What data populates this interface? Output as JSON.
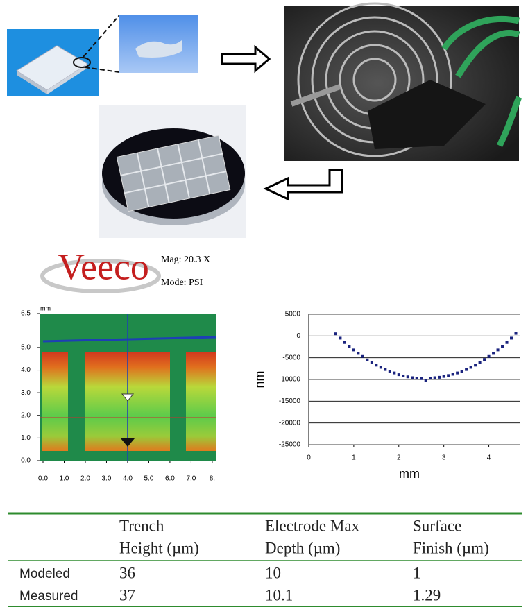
{
  "logo": {
    "brand": "Veeco",
    "mag": "Mag: 20.3 X",
    "mode": "Mode: PSI"
  },
  "chart_data": [
    {
      "type": "surface",
      "unit_label": "mm",
      "xlim": [
        0,
        8.2
      ],
      "ylim": [
        0,
        6.5
      ],
      "xticks": [
        {
          "value": 0,
          "label": "0.0"
        },
        {
          "value": 1,
          "label": "1.0"
        },
        {
          "value": 2,
          "label": "2.0"
        },
        {
          "value": 3,
          "label": "3.0"
        },
        {
          "value": 4,
          "label": "4.0"
        },
        {
          "value": 5,
          "label": "5.0"
        },
        {
          "value": 6,
          "label": "6.0"
        },
        {
          "value": 7,
          "label": "7.0"
        },
        {
          "value": 8,
          "label": "8."
        }
      ],
      "yticks": [
        {
          "value": 0,
          "label": "0.0"
        },
        {
          "value": 1,
          "label": "1.0"
        },
        {
          "value": 2,
          "label": "2.0"
        },
        {
          "value": 3,
          "label": "3.0"
        },
        {
          "value": 4,
          "label": "4.0"
        },
        {
          "value": 5,
          "label": "5.0"
        },
        6.5
      ]
    },
    {
      "type": "scatter",
      "xlabel": "mm",
      "ylabel": "nm",
      "color": "#1a237e",
      "grid": true,
      "xlim": [
        0,
        4.7
      ],
      "ylim": [
        -25000,
        5000
      ],
      "xticks": [
        0,
        1,
        2,
        3,
        4
      ],
      "yticks": [
        5000,
        0,
        -5000,
        -10000,
        -15000,
        -20000,
        -25000
      ],
      "x": [
        0.6,
        0.7,
        0.8,
        0.9,
        1.0,
        1.1,
        1.2,
        1.3,
        1.4,
        1.5,
        1.6,
        1.7,
        1.8,
        1.9,
        2.0,
        2.1,
        2.2,
        2.3,
        2.4,
        2.5,
        2.6,
        2.7,
        2.8,
        2.9,
        3.0,
        3.1,
        3.2,
        3.3,
        3.4,
        3.5,
        3.6,
        3.7,
        3.8,
        3.9,
        4.0,
        4.1,
        4.2,
        4.3,
        4.4,
        4.5,
        4.6
      ],
      "values": [
        500,
        -500,
        -1500,
        -2400,
        -3200,
        -4000,
        -4700,
        -5500,
        -6100,
        -6700,
        -7200,
        -7700,
        -8200,
        -8500,
        -8900,
        -9200,
        -9400,
        -9600,
        -9700,
        -9800,
        -10200,
        -9700,
        -9600,
        -9500,
        -9300,
        -9100,
        -8800,
        -8500,
        -8100,
        -7700,
        -7200,
        -6700,
        -6100,
        -5400,
        -4700,
        -4000,
        -3200,
        -2400,
        -1500,
        -500,
        600
      ]
    }
  ],
  "table": {
    "header": [
      [
        "Trench",
        "Height (µm)"
      ],
      [
        "Electrode Max",
        "Depth (µm)"
      ],
      [
        "Surface",
        "Finish (µm)"
      ]
    ],
    "rows": [
      [
        "Modeled",
        "36",
        "10",
        "1"
      ],
      [
        "Measured",
        "37",
        "10.1",
        "1.29"
      ]
    ]
  }
}
